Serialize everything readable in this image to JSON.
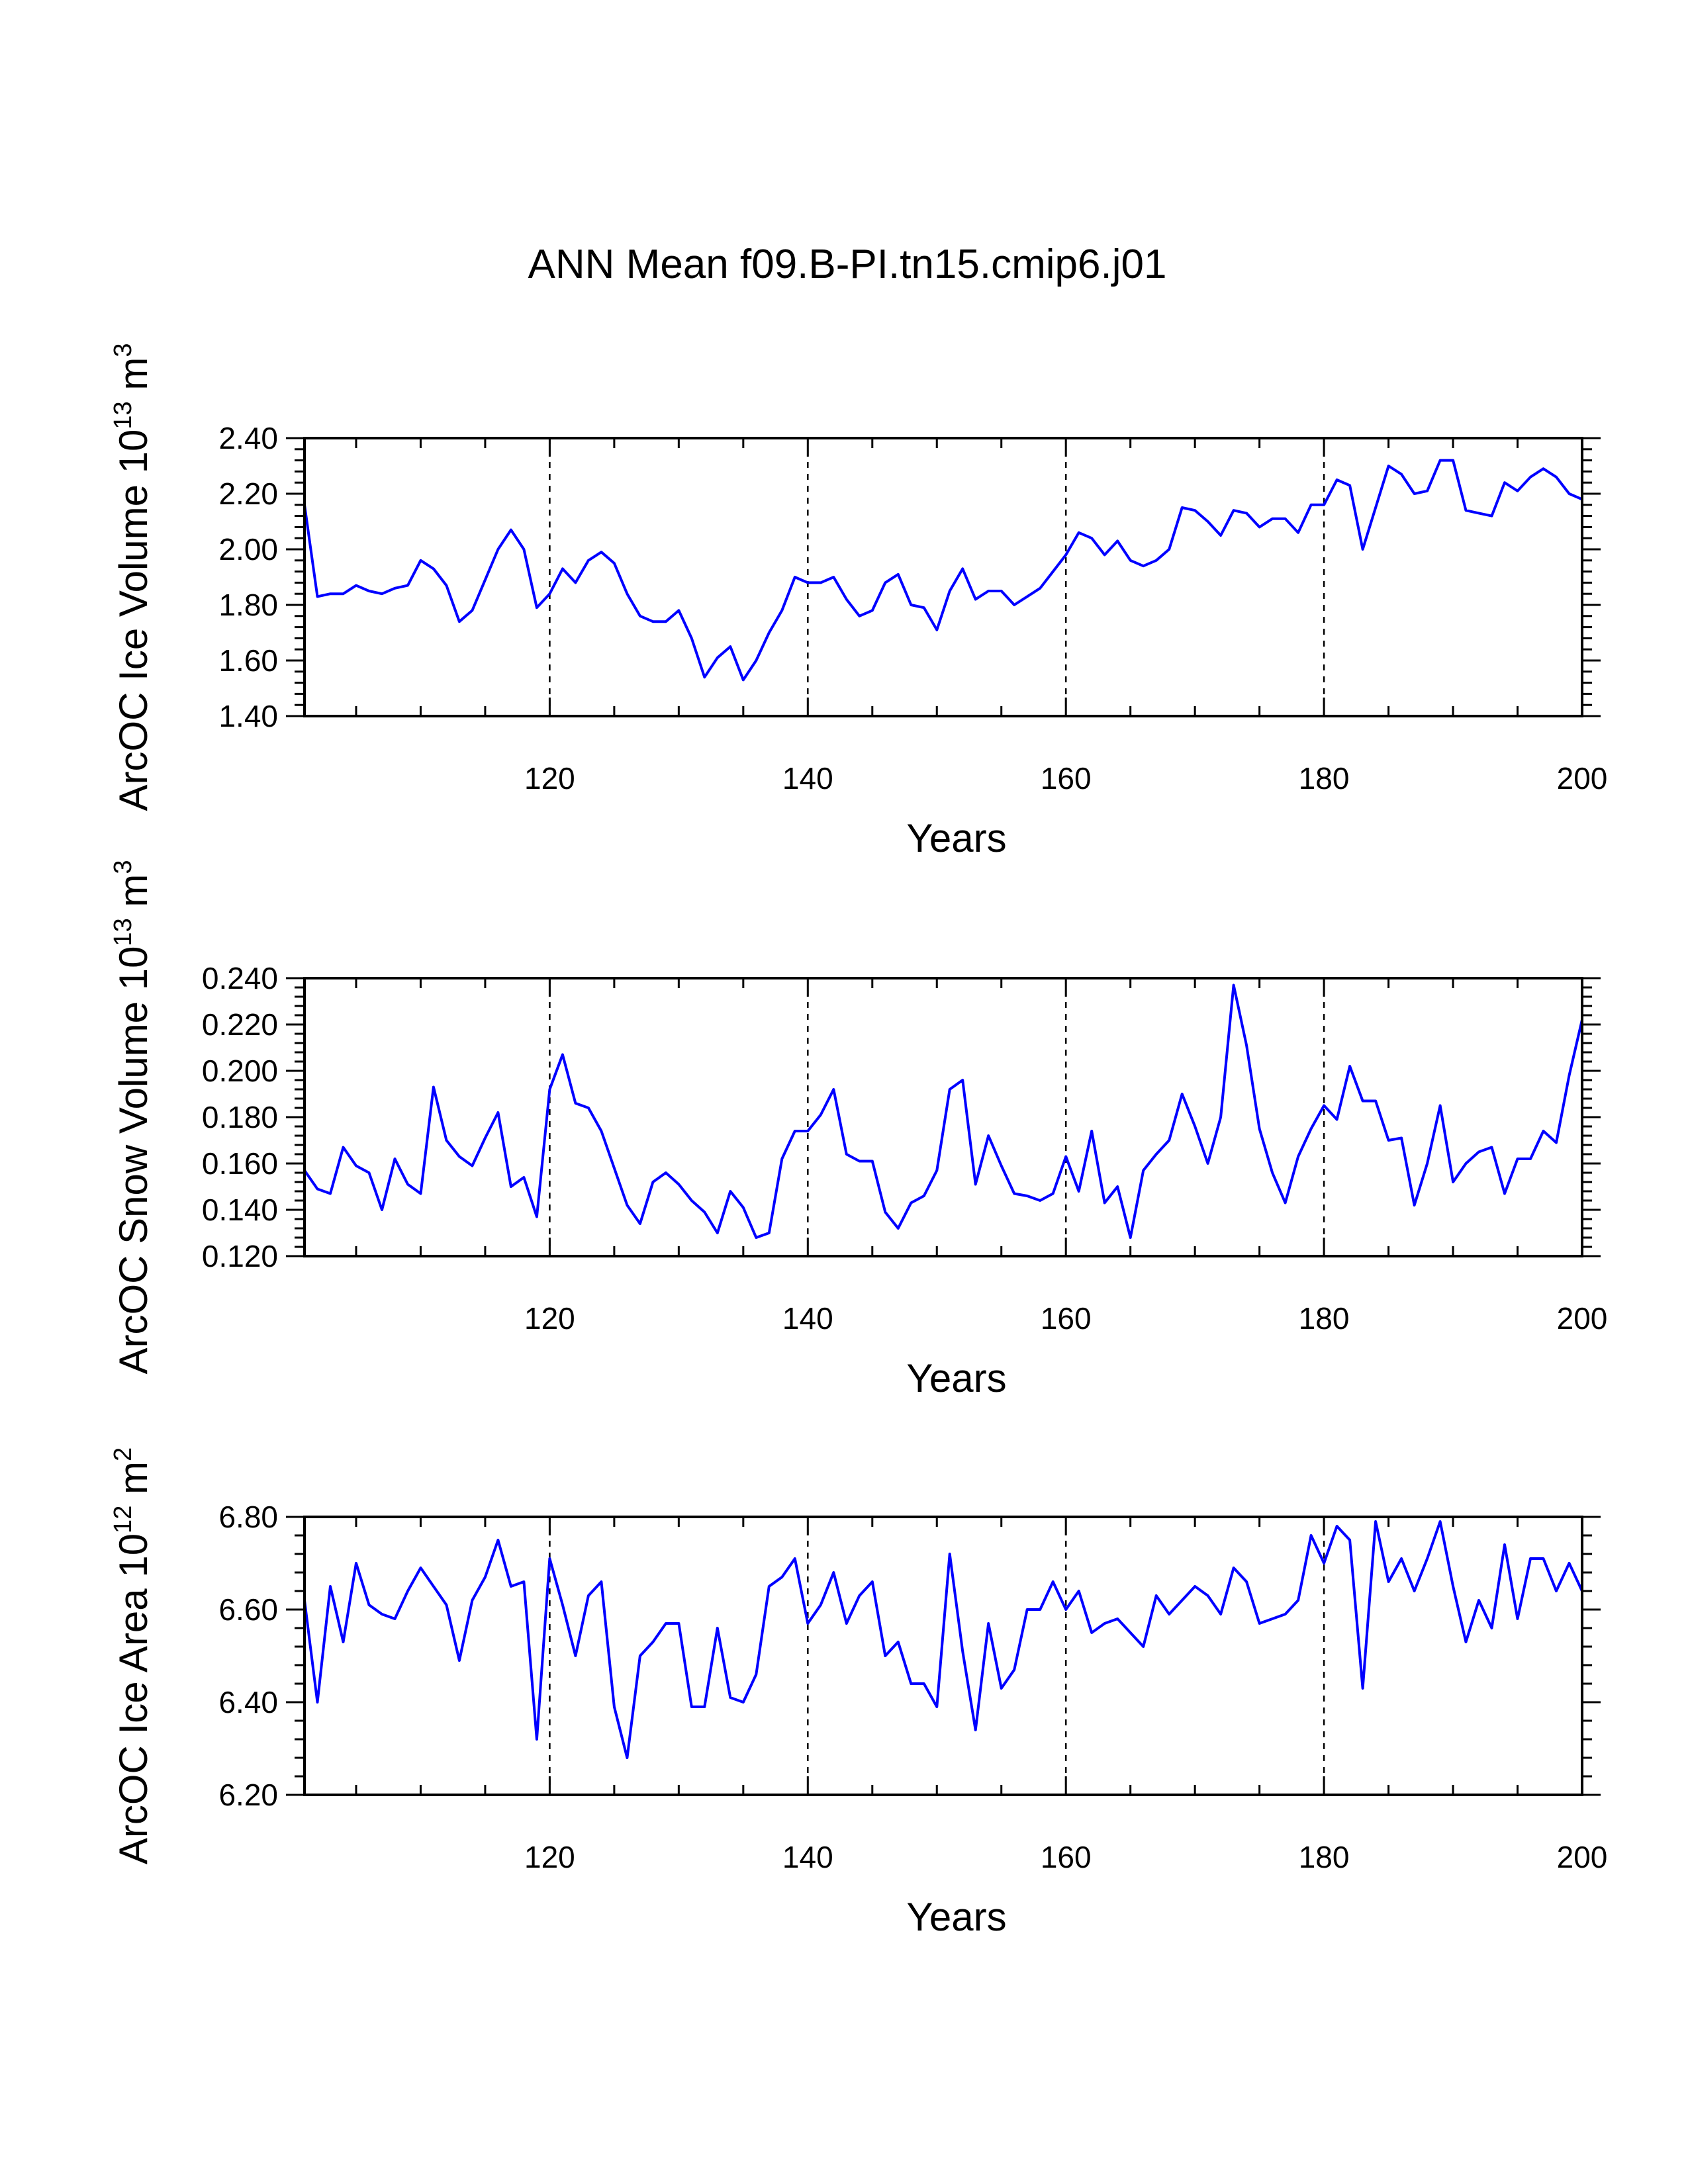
{
  "title": "ANN Mean f09.B-PI.tn15.cmip6.j01",
  "line_color": "#0000ff",
  "chart_data": [
    {
      "type": "line",
      "xlabel": "Years",
      "ylabel": {
        "base": "ArcOC Ice Volume 10",
        "exponent": "13",
        "unit": " m",
        "unit_exponent": "3"
      },
      "xlim": [
        101,
        200
      ],
      "ylim": [
        1.4,
        2.4
      ],
      "xticks": [
        120,
        140,
        160,
        180,
        200
      ],
      "xtick_labels": [
        "120",
        "140",
        "160",
        "180",
        "200"
      ],
      "yticks": [
        1.4,
        1.6,
        1.8,
        2.0,
        2.2,
        2.4
      ],
      "ytick_labels": [
        "1.40",
        "1.60",
        "1.80",
        "2.00",
        "2.20",
        "2.40"
      ],
      "grid_x": [
        120,
        140,
        160,
        180
      ],
      "series": [
        {
          "name": "ArcOC Ice Volume",
          "x_start": 101,
          "values": [
            2.16,
            1.83,
            1.84,
            1.84,
            1.87,
            1.85,
            1.84,
            1.86,
            1.87,
            1.96,
            1.93,
            1.87,
            1.74,
            1.78,
            1.89,
            2.0,
            2.07,
            2.0,
            1.79,
            1.84,
            1.93,
            1.88,
            1.96,
            1.99,
            1.95,
            1.84,
            1.76,
            1.74,
            1.74,
            1.78,
            1.68,
            1.54,
            1.61,
            1.65,
            1.53,
            1.6,
            1.7,
            1.78,
            1.9,
            1.88,
            1.88,
            1.9,
            1.82,
            1.76,
            1.78,
            1.88,
            1.91,
            1.8,
            1.79,
            1.71,
            1.85,
            1.93,
            1.82,
            1.85,
            1.85,
            1.8,
            1.83,
            1.86,
            1.92,
            1.98,
            2.06,
            2.04,
            1.98,
            2.03,
            1.96,
            1.94,
            1.96,
            2.0,
            2.15,
            2.14,
            2.1,
            2.05,
            2.14,
            2.13,
            2.08,
            2.11,
            2.11,
            2.06,
            2.16,
            2.16,
            2.25,
            2.23,
            2.0,
            2.15,
            2.3,
            2.27,
            2.2,
            2.21,
            2.32,
            2.32,
            2.14,
            2.13,
            2.12,
            2.24,
            2.21,
            2.26,
            2.29,
            2.26,
            2.2,
            2.18
          ]
        }
      ]
    },
    {
      "type": "line",
      "xlabel": "Years",
      "ylabel": {
        "base": "ArcOC Snow Volume 10",
        "exponent": "13",
        "unit": " m",
        "unit_exponent": "3"
      },
      "xlim": [
        101,
        200
      ],
      "ylim": [
        0.12,
        0.24
      ],
      "xticks": [
        120,
        140,
        160,
        180,
        200
      ],
      "xtick_labels": [
        "120",
        "140",
        "160",
        "180",
        "200"
      ],
      "yticks": [
        0.12,
        0.14,
        0.16,
        0.18,
        0.2,
        0.22,
        0.24
      ],
      "ytick_labels": [
        "0.120",
        "0.140",
        "0.160",
        "0.180",
        "0.200",
        "0.220",
        "0.240"
      ],
      "grid_x": [
        120,
        140,
        160,
        180
      ],
      "series": [
        {
          "name": "ArcOC Snow Volume",
          "x_start": 101,
          "values": [
            0.157,
            0.149,
            0.147,
            0.167,
            0.159,
            0.156,
            0.14,
            0.162,
            0.151,
            0.147,
            0.193,
            0.17,
            0.163,
            0.159,
            0.171,
            0.182,
            0.15,
            0.154,
            0.137,
            0.192,
            0.207,
            0.186,
            0.184,
            0.174,
            0.158,
            0.142,
            0.134,
            0.152,
            0.156,
            0.151,
            0.144,
            0.139,
            0.13,
            0.148,
            0.141,
            0.128,
            0.13,
            0.162,
            0.174,
            0.174,
            0.181,
            0.192,
            0.164,
            0.161,
            0.161,
            0.139,
            0.132,
            0.143,
            0.146,
            0.157,
            0.192,
            0.196,
            0.151,
            0.172,
            0.159,
            0.147,
            0.146,
            0.144,
            0.147,
            0.163,
            0.148,
            0.174,
            0.143,
            0.15,
            0.128,
            0.157,
            0.164,
            0.17,
            0.19,
            0.176,
            0.16,
            0.18,
            0.237,
            0.211,
            0.175,
            0.156,
            0.143,
            0.163,
            0.175,
            0.185,
            0.179,
            0.202,
            0.187,
            0.187,
            0.17,
            0.171,
            0.142,
            0.16,
            0.185,
            0.152,
            0.16,
            0.165,
            0.167,
            0.147,
            0.162,
            0.162,
            0.174,
            0.169,
            0.198,
            0.222
          ]
        }
      ]
    },
    {
      "type": "line",
      "xlabel": "Years",
      "ylabel": {
        "base": "ArcOC Ice Area 10",
        "exponent": "12",
        "unit": " m",
        "unit_exponent": "2"
      },
      "xlim": [
        101,
        200
      ],
      "ylim": [
        6.2,
        6.8
      ],
      "xticks": [
        120,
        140,
        160,
        180,
        200
      ],
      "xtick_labels": [
        "120",
        "140",
        "160",
        "180",
        "200"
      ],
      "yticks": [
        6.2,
        6.4,
        6.6,
        6.8
      ],
      "ytick_labels": [
        "6.20",
        "6.40",
        "6.60",
        "6.80"
      ],
      "grid_x": [
        120,
        140,
        160,
        180
      ],
      "series": [
        {
          "name": "ArcOC Ice Area",
          "x_start": 101,
          "values": [
            6.62,
            6.4,
            6.65,
            6.53,
            6.7,
            6.61,
            6.59,
            6.58,
            6.64,
            6.69,
            6.65,
            6.61,
            6.49,
            6.62,
            6.67,
            6.75,
            6.65,
            6.66,
            6.32,
            6.71,
            6.61,
            6.5,
            6.63,
            6.66,
            6.39,
            6.28,
            6.5,
            6.53,
            6.57,
            6.57,
            6.39,
            6.39,
            6.56,
            6.41,
            6.4,
            6.46,
            6.65,
            6.67,
            6.71,
            6.57,
            6.61,
            6.68,
            6.57,
            6.63,
            6.66,
            6.5,
            6.53,
            6.44,
            6.44,
            6.39,
            6.72,
            6.51,
            6.34,
            6.57,
            6.43,
            6.47,
            6.6,
            6.6,
            6.66,
            6.6,
            6.64,
            6.55,
            6.57,
            6.58,
            6.55,
            6.52,
            6.63,
            6.59,
            6.62,
            6.65,
            6.63,
            6.59,
            6.69,
            6.66,
            6.57,
            6.58,
            6.59,
            6.62,
            6.76,
            6.7,
            6.78,
            6.75,
            6.43,
            6.79,
            6.66,
            6.71,
            6.64,
            6.71,
            6.79,
            6.65,
            6.53,
            6.62,
            6.56,
            6.74,
            6.58,
            6.71,
            6.71,
            6.64,
            6.7,
            6.64
          ]
        }
      ]
    }
  ]
}
